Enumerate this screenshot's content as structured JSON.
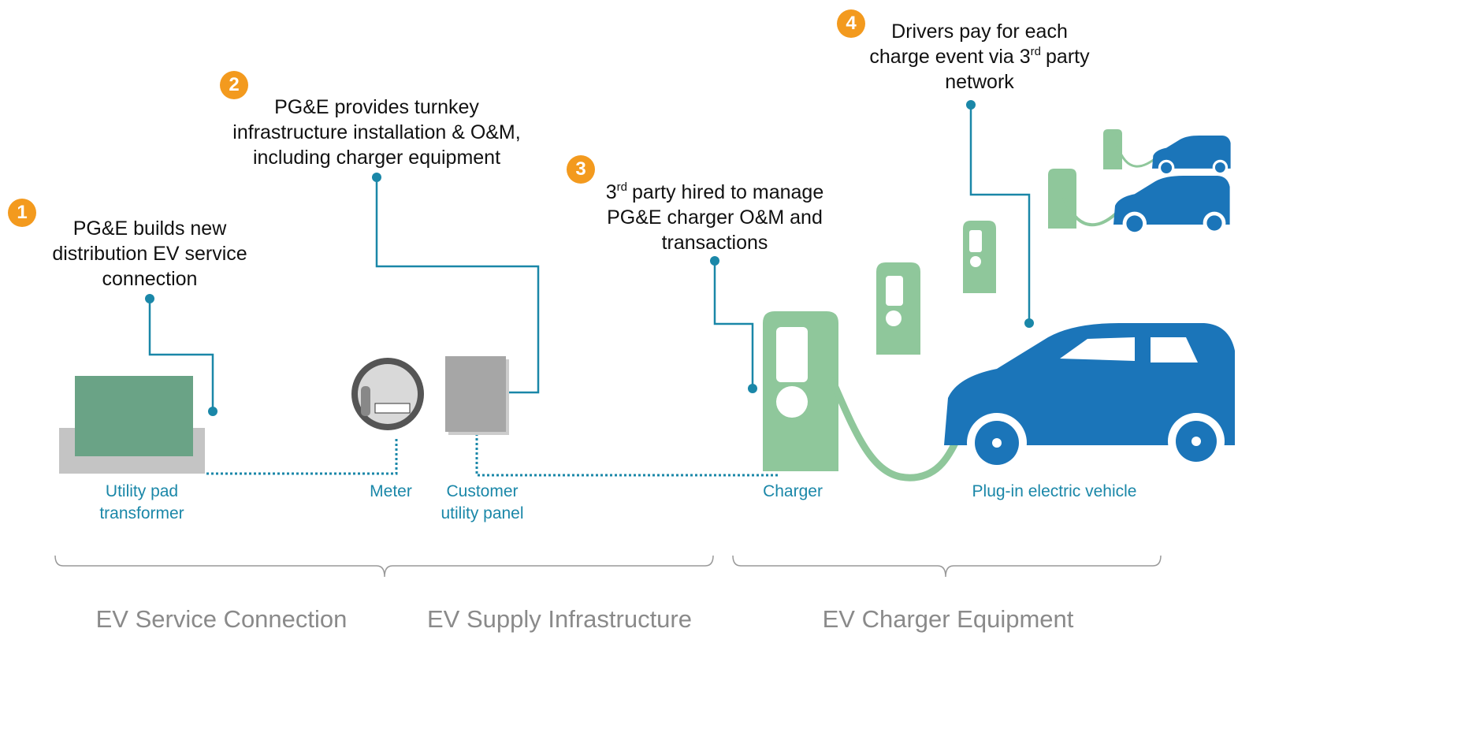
{
  "steps": [
    {
      "number": "1",
      "lines": [
        [
          "PG&E builds new"
        ],
        [
          "distribution EV service"
        ],
        [
          "connection"
        ]
      ]
    },
    {
      "number": "2",
      "lines": [
        [
          "PG&E provides turnkey"
        ],
        [
          "infrastructure installation & O&M,"
        ],
        [
          "including charger equipment"
        ]
      ]
    },
    {
      "number": "3",
      "lines": [
        [
          "3",
          "rd",
          "party hired to manage"
        ],
        [
          "PG&E charger O&M and"
        ],
        [
          "transactions"
        ]
      ]
    },
    {
      "number": "4",
      "lines": [
        [
          "Drivers pay for each"
        ],
        [
          "charge event via 3",
          "rd",
          "party"
        ],
        [
          "network"
        ]
      ]
    }
  ],
  "components": [
    {
      "lines": [
        "Utility pad",
        "transformer"
      ]
    },
    {
      "lines": [
        "Meter"
      ]
    },
    {
      "lines": [
        "Customer",
        "utility panel"
      ]
    },
    {
      "lines": [
        "Charger"
      ]
    },
    {
      "lines": [
        "Plug-in electric vehicle"
      ]
    }
  ],
  "sections": [
    "EV Service Connection",
    "EV Supply Infrastructure",
    "EV Charger Equipment"
  ]
}
